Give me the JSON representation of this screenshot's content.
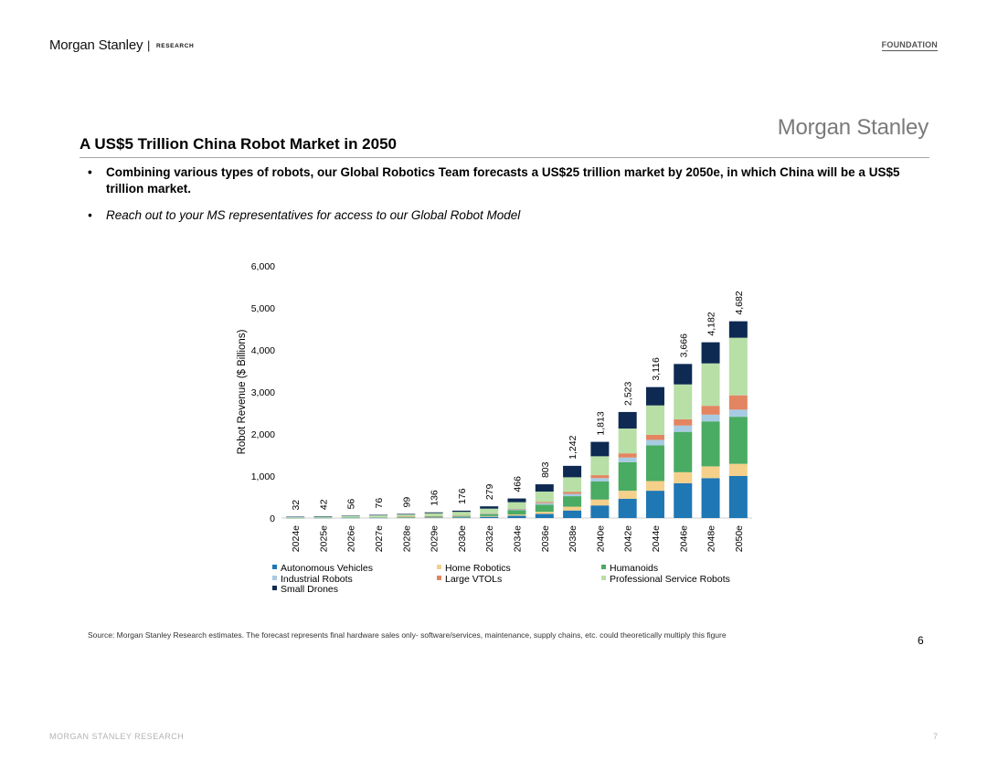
{
  "header": {
    "brand": "Morgan Stanley",
    "separator": "|",
    "research": "RESEARCH",
    "foundation": "FOUNDATION"
  },
  "slide": {
    "logo": "Morgan Stanley",
    "title": "A US$5 Trillion China Robot Market in 2050",
    "bullets": [
      "Combining various types of robots, our Global Robotics Team forecasts a US$25 trillion market by 2050e, in which China will be a US$5 trillion market.",
      "Reach out to your MS representatives for access to our Global Robot Model"
    ],
    "bullet_symbol": "•",
    "source": "Source: Morgan Stanley Research estimates. The forecast represents final hardware sales only- software/services, maintenance, supply chains, etc. could theoretically multiply this figure",
    "page_number": "6"
  },
  "footer": {
    "left": "MORGAN STANLEY RESEARCH",
    "right": "7"
  },
  "chart_data": {
    "type": "bar",
    "stacked": true,
    "title": "",
    "xlabel": "",
    "ylabel": "Robot Revenue ($ Billions)",
    "ylim": [
      0,
      6000
    ],
    "yticks": [
      0,
      1000,
      2000,
      3000,
      4000,
      5000,
      6000
    ],
    "ytick_labels": [
      "0",
      "1,000",
      "2,000",
      "3,000",
      "4,000",
      "5,000",
      "6,000"
    ],
    "grid": false,
    "legend_position": "bottom",
    "categories": [
      "2024e",
      "2025e",
      "2026e",
      "2027e",
      "2028e",
      "2029e",
      "2030e",
      "2032e",
      "2034e",
      "2036e",
      "2038e",
      "2040e",
      "2042e",
      "2044e",
      "2046e",
      "2048e",
      "2050e"
    ],
    "totals": [
      32,
      42,
      56,
      76,
      99,
      136,
      176,
      279,
      466,
      803,
      1242,
      1813,
      2523,
      3116,
      3666,
      4182,
      4682
    ],
    "total_labels": [
      "32",
      "42",
      "56",
      "76",
      "99",
      "136",
      "176",
      "279",
      "466",
      "803",
      "1,242",
      "1,813",
      "2,523",
      "3,116",
      "3,666",
      "4,182",
      "4,682"
    ],
    "series": [
      {
        "name": "Autonomous Vehicles",
        "color": "#1f77b4",
        "values": [
          3,
          4,
          5,
          7,
          10,
          14,
          18,
          30,
          55,
          100,
          180,
          300,
          460,
          650,
          830,
          950,
          1000
        ]
      },
      {
        "name": "Home Robotics",
        "color": "#f4d08a",
        "values": [
          1,
          2,
          2,
          3,
          5,
          7,
          10,
          18,
          30,
          50,
          90,
          140,
          190,
          230,
          260,
          280,
          290
        ]
      },
      {
        "name": "Humanoids",
        "color": "#4aab63",
        "values": [
          2,
          3,
          4,
          6,
          8,
          14,
          20,
          45,
          100,
          170,
          250,
          430,
          680,
          850,
          960,
          1070,
          1120
        ]
      },
      {
        "name": "Industrial Robots",
        "color": "#a6cbe3",
        "values": [
          6,
          7,
          8,
          9,
          10,
          11,
          12,
          16,
          22,
          35,
          55,
          80,
          110,
          130,
          150,
          160,
          170
        ]
      },
      {
        "name": "Large VTOLs",
        "color": "#e38560",
        "values": [
          0,
          0,
          0,
          0,
          1,
          2,
          3,
          5,
          10,
          25,
          45,
          70,
          100,
          120,
          150,
          210,
          340
        ]
      },
      {
        "name": "Professional Service Robots",
        "color": "#b8dfa6",
        "values": [
          15,
          19,
          27,
          38,
          50,
          68,
          85,
          110,
          160,
          250,
          350,
          450,
          590,
          700,
          830,
          1010,
          1370
        ]
      },
      {
        "name": "Small Drones",
        "color": "#0e2a52",
        "values": [
          5,
          7,
          10,
          13,
          15,
          20,
          28,
          55,
          89,
          173,
          272,
          343,
          393,
          436,
          486,
          502,
          392
        ]
      }
    ]
  }
}
